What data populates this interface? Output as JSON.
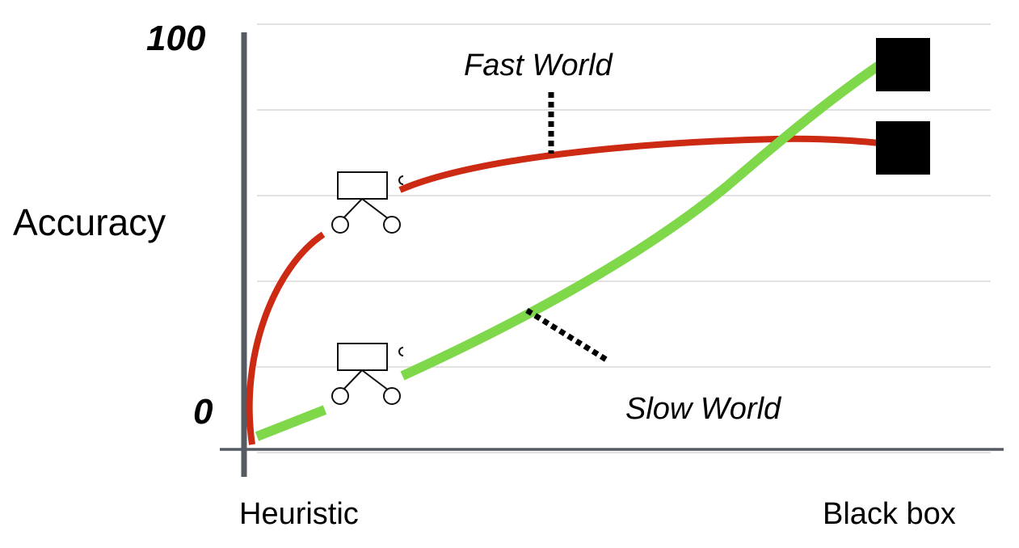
{
  "y_axis": {
    "label": "Accuracy",
    "max_label": "100",
    "min_label": "0"
  },
  "x_axis": {
    "left_label": "Heuristic",
    "right_label": "Black box"
  },
  "curves": [
    {
      "name": "Fast World",
      "color": "#cc2a12"
    },
    {
      "name": "Slow World",
      "color": "#7ed84a"
    }
  ],
  "colors": {
    "axis": "#555a63",
    "grid": "#d9d9d9",
    "marker": "#000000"
  },
  "icons": [
    "decision-tree-icon",
    "black-box-icon"
  ]
}
